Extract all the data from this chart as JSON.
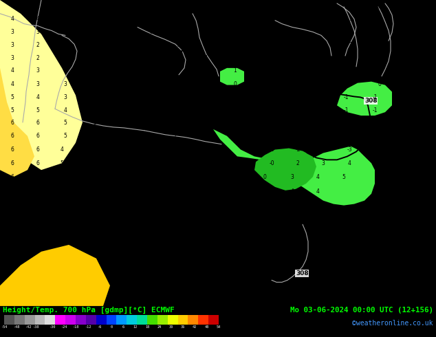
{
  "title_left": "Height/Temp. 700 hPa [gdmp][°C] ECMWF",
  "title_right": "Mo 03-06-2024 00:00 UTC (12+156)",
  "credit": "©weatheronline.co.uk",
  "map_bg_color": "#ffee00",
  "map_light_color": "#ffff88",
  "map_orange_color": "#ffcc00",
  "green_color": "#44ee44",
  "green_dark_color": "#33cc33",
  "fig_bg_color": "#000000",
  "bottom_bar_color": "#000000",
  "bottom_text_color": "#00ff00",
  "credit_color": "#4499ff",
  "coastline_color": "#aaaaaa",
  "contour_color": "#000000",
  "contour_label_color": "#000000",
  "number_color": "#000000",
  "number_color_green": "#000000",
  "cb_colors": [
    "#555555",
    "#777777",
    "#999999",
    "#bbbbbb",
    "#dddddd",
    "#ff00ff",
    "#cc00ee",
    "#8800cc",
    "#5500aa",
    "#0000cc",
    "#0044ff",
    "#0099ff",
    "#00ccdd",
    "#00dd99",
    "#44dd00",
    "#99ee00",
    "#eeff00",
    "#ffcc00",
    "#ff8800",
    "#ff3300",
    "#cc0000"
  ],
  "cb_tick_labels": [
    "-54",
    "-48",
    "-42",
    "-38",
    "-30",
    "-24",
    "-18",
    "-12",
    "-6",
    "0",
    "6",
    "12",
    "18",
    "24",
    "30",
    "36",
    "42",
    "48",
    "54"
  ]
}
